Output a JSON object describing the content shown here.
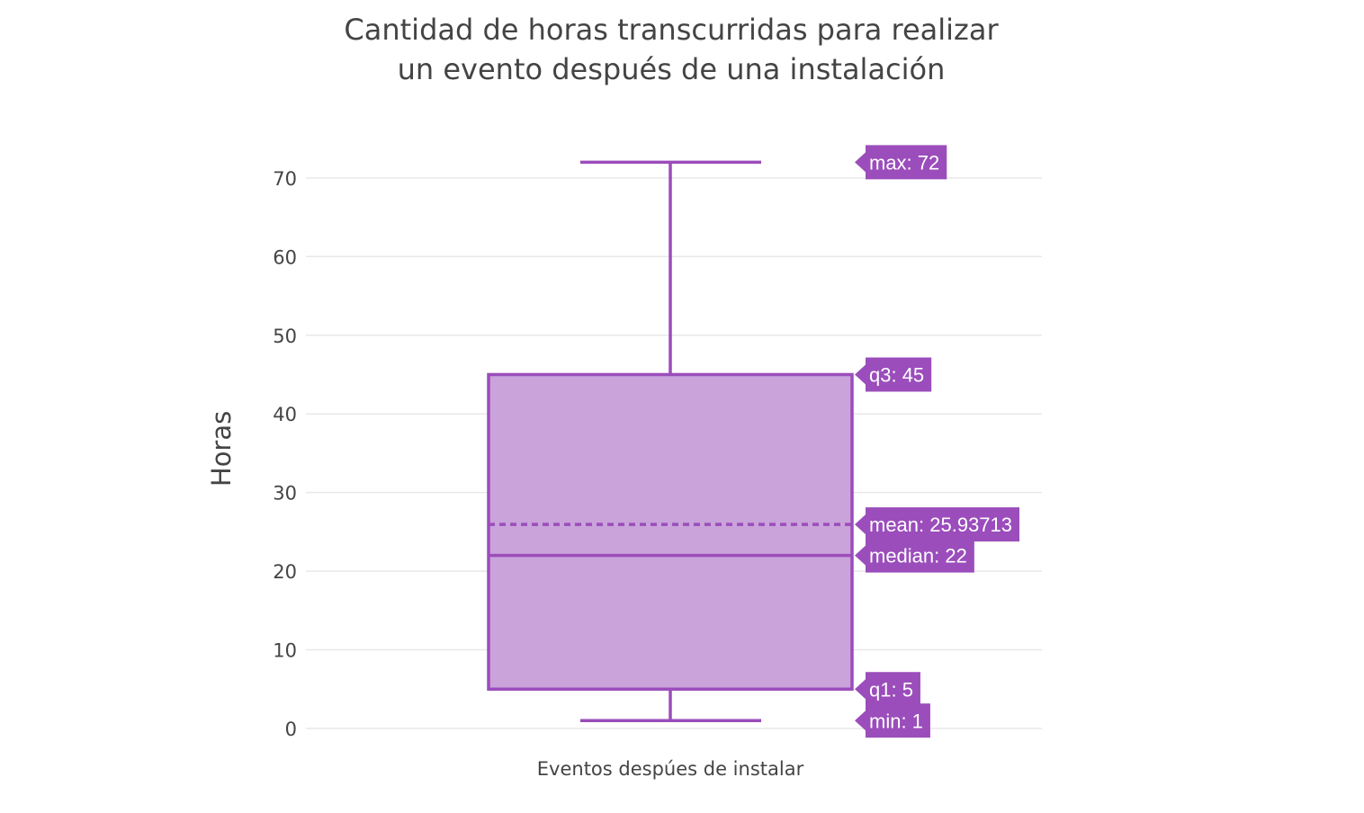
{
  "chart_data": {
    "type": "box",
    "title_lines": [
      "Cantidad de horas transcurridas para realizar",
      "un evento después de una instalación"
    ],
    "ylabel": "Horas",
    "xlabel": "",
    "category": "Eventos despúes de instalar",
    "ylim": [
      -0.5,
      76
    ],
    "yticks": [
      0,
      10,
      20,
      30,
      40,
      50,
      60,
      70
    ],
    "grid": true,
    "color": "#9b4dbb",
    "fill_color": "#c9a3da",
    "stats": {
      "min": 1,
      "q1": 5,
      "median": 22,
      "mean": 25.93713,
      "q3": 45,
      "max": 72
    },
    "annotations": [
      {
        "key": "max",
        "text": "max: 72"
      },
      {
        "key": "q3",
        "text": "q3: 45"
      },
      {
        "key": "mean",
        "text": "mean: 25.93713"
      },
      {
        "key": "median",
        "text": "median: 22"
      },
      {
        "key": "q1",
        "text": "q1: 5"
      },
      {
        "key": "min",
        "text": "min: 1"
      }
    ]
  }
}
